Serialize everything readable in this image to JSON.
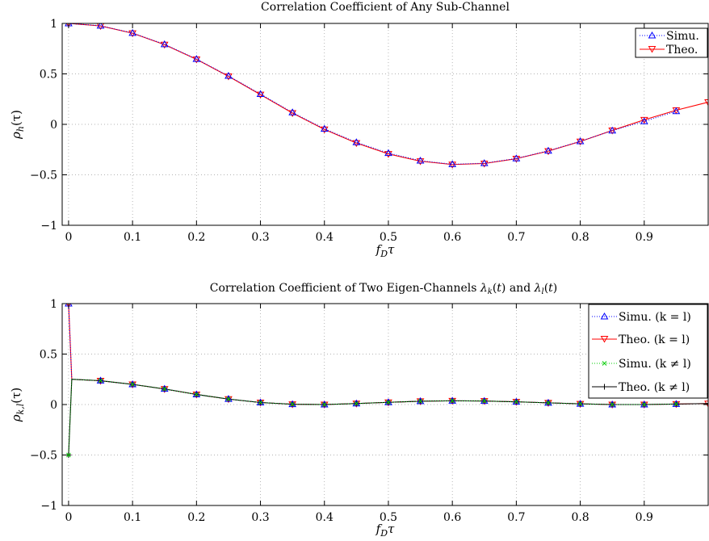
{
  "chart_data": [
    {
      "type": "line",
      "title": "Correlation Coefficient of Any Sub-Channel",
      "xlabel": "f_Dτ",
      "ylabel": "ρ_h(τ)",
      "xlim": [
        -0.01,
        1.0
      ],
      "ylim": [
        -1,
        1
      ],
      "xticks": [
        0,
        0.1,
        0.2,
        0.3,
        0.4,
        0.5,
        0.6,
        0.7,
        0.8,
        0.9
      ],
      "xtick_labels": [
        "0",
        "0.1",
        "0.2",
        "0.3",
        "0.4",
        "0.5",
        "0.6",
        "0.7",
        "0.8",
        "0.9"
      ],
      "yticks": [
        -1,
        -0.5,
        0,
        0.5,
        1
      ],
      "ytick_labels": [
        "−1",
        "−0.5",
        "0",
        "0.5",
        "1"
      ],
      "grid": true,
      "legend_position": "top-right",
      "series": [
        {
          "name": "Simu.",
          "color": "#0000ff",
          "line": "dotted",
          "marker": "triangle-up",
          "x": [
            0,
            0.05,
            0.1,
            0.15,
            0.2,
            0.25,
            0.3,
            0.35,
            0.4,
            0.45,
            0.5,
            0.55,
            0.6,
            0.65,
            0.7,
            0.75,
            0.8,
            0.85,
            0.9,
            0.95
          ],
          "y": [
            1.0,
            0.977,
            0.905,
            0.793,
            0.647,
            0.48,
            0.3,
            0.118,
            -0.045,
            -0.178,
            -0.285,
            -0.36,
            -0.395,
            -0.385,
            -0.338,
            -0.262,
            -0.168,
            -0.062,
            0.03,
            0.13
          ]
        },
        {
          "name": "Theo.",
          "color": "#ff0000",
          "line": "solid",
          "marker": "triangle-down",
          "x": [
            0,
            0.05,
            0.1,
            0.15,
            0.2,
            0.25,
            0.3,
            0.35,
            0.4,
            0.45,
            0.5,
            0.55,
            0.6,
            0.65,
            0.7,
            0.75,
            0.8,
            0.85,
            0.9,
            0.95,
            1.0
          ],
          "y": [
            1.0,
            0.975,
            0.903,
            0.79,
            0.644,
            0.476,
            0.295,
            0.112,
            -0.05,
            -0.185,
            -0.293,
            -0.365,
            -0.398,
            -0.388,
            -0.34,
            -0.265,
            -0.17,
            -0.06,
            0.045,
            0.14,
            0.22
          ]
        }
      ]
    },
    {
      "type": "line",
      "title": "Correlation Coefficient of Two Eigen-Channels λ_k(t) and λ_l(t)",
      "xlabel": "f_Dτ",
      "ylabel": "ρ_{k,l}(τ)",
      "xlim": [
        -0.01,
        1.0
      ],
      "ylim": [
        -1,
        1
      ],
      "xticks": [
        0,
        0.1,
        0.2,
        0.3,
        0.4,
        0.5,
        0.6,
        0.7,
        0.8,
        0.9
      ],
      "xtick_labels": [
        "0",
        "0.1",
        "0.2",
        "0.3",
        "0.4",
        "0.5",
        "0.6",
        "0.7",
        "0.8",
        "0.9"
      ],
      "yticks": [
        -1,
        -0.5,
        0,
        0.5,
        1
      ],
      "ytick_labels": [
        "−1",
        "−0.5",
        "0",
        "0.5",
        "1"
      ],
      "grid": true,
      "legend_position": "top-right",
      "series": [
        {
          "name": "Simu. (k = l)",
          "color": "#0000ff",
          "line": "dotted",
          "marker": "triangle-up",
          "x": [
            0,
            0.005,
            0.05,
            0.1,
            0.15,
            0.2,
            0.25,
            0.3,
            0.35,
            0.4,
            0.45,
            0.5,
            0.55,
            0.6,
            0.65,
            0.7,
            0.75,
            0.8,
            0.85,
            0.9,
            0.95
          ],
          "y": [
            1.0,
            0.25,
            0.237,
            0.2,
            0.155,
            0.1,
            0.055,
            0.02,
            0.003,
            0.0,
            0.01,
            0.022,
            0.033,
            0.037,
            0.035,
            0.027,
            0.017,
            0.007,
            0.0,
            0.0,
            0.005
          ]
        },
        {
          "name": "Theo. (k = l)",
          "color": "#ff0000",
          "line": "solid",
          "marker": "triangle-down",
          "x": [
            0,
            0.005,
            0.05,
            0.1,
            0.15,
            0.2,
            0.25,
            0.3,
            0.35,
            0.4,
            0.45,
            0.5,
            0.55,
            0.6,
            0.65,
            0.7,
            0.75,
            0.8,
            0.85,
            0.9,
            0.95,
            1.0
          ],
          "y": [
            1.0,
            0.25,
            0.236,
            0.2,
            0.154,
            0.1,
            0.054,
            0.02,
            0.003,
            0.0,
            0.01,
            0.022,
            0.033,
            0.037,
            0.035,
            0.027,
            0.017,
            0.007,
            0.0,
            0.0,
            0.005,
            0.01
          ]
        },
        {
          "name": "Simu. (k ≠ l)",
          "color": "#00cc00",
          "line": "dotted",
          "marker": "x",
          "x": [
            0,
            0.005,
            0.05,
            0.1,
            0.15,
            0.2,
            0.25,
            0.3,
            0.35,
            0.4,
            0.45,
            0.5,
            0.55,
            0.6,
            0.65,
            0.7,
            0.75,
            0.8,
            0.85,
            0.9,
            0.95
          ],
          "y": [
            -0.5,
            0.25,
            0.237,
            0.2,
            0.155,
            0.1,
            0.055,
            0.02,
            0.003,
            0.0,
            0.01,
            0.022,
            0.033,
            0.037,
            0.035,
            0.027,
            0.017,
            0.007,
            0.0,
            0.0,
            0.005
          ]
        },
        {
          "name": "Theo. (k ≠ l)",
          "color": "#000000",
          "line": "solid",
          "marker": "plus",
          "x": [
            0,
            0.005,
            0.05,
            0.1,
            0.15,
            0.2,
            0.25,
            0.3,
            0.35,
            0.4,
            0.45,
            0.5,
            0.55,
            0.6,
            0.65,
            0.7,
            0.75,
            0.8,
            0.85,
            0.9,
            0.95,
            1.0
          ],
          "y": [
            -0.5,
            0.25,
            0.236,
            0.2,
            0.154,
            0.1,
            0.054,
            0.02,
            0.003,
            0.0,
            0.01,
            0.022,
            0.033,
            0.037,
            0.035,
            0.027,
            0.017,
            0.007,
            0.0,
            0.0,
            0.005,
            0.01
          ]
        }
      ]
    }
  ]
}
